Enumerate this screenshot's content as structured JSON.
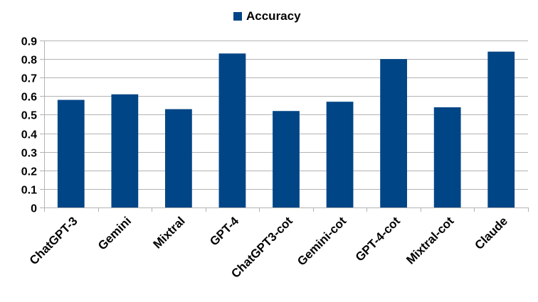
{
  "chart_data": {
    "type": "bar",
    "title": "",
    "xlabel": "",
    "ylabel": "",
    "categories": [
      "ChatGPT-3",
      "Gemini",
      "Mixtral",
      "GPT-4",
      "ChatGPT3-cot",
      "Gemini-cot",
      "GPT-4-cot",
      "Mixtral-cot",
      "Claude"
    ],
    "series": [
      {
        "name": "Accuracy",
        "values": [
          0.58,
          0.61,
          0.53,
          0.83,
          0.52,
          0.57,
          0.8,
          0.54,
          0.84
        ],
        "color": "#004586"
      }
    ],
    "ylim": [
      0,
      0.9
    ],
    "yticks": [
      0,
      0.1,
      0.2,
      0.3,
      0.4,
      0.5,
      0.6,
      0.7,
      0.8,
      0.9
    ],
    "ytick_labels": [
      "0",
      "0.1",
      "0.2",
      "0.3",
      "0.4",
      "0.5",
      "0.6",
      "0.7",
      "0.8",
      "0.9"
    ],
    "grid": true,
    "legend_position": "top-center",
    "gridline_color": "#b3b3b3",
    "axis_color": "#b3b3b3"
  }
}
